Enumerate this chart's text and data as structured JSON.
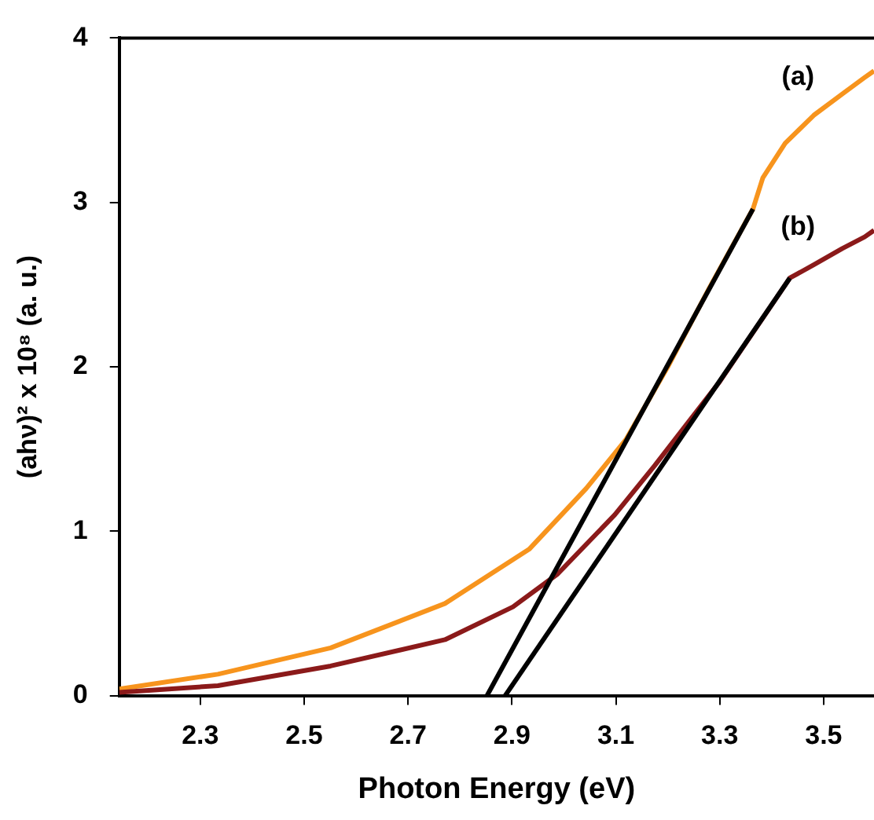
{
  "chart_data": {
    "type": "line",
    "xlabel": "Photon Energy (eV)",
    "ylabel": "(ahν)² x 10⁸ (a. u.)",
    "xlim": [
      2.144,
      3.597
    ],
    "xticks": [
      2.3,
      2.5,
      2.7,
      2.9,
      3.1,
      3.3,
      3.5
    ],
    "ylim": [
      0,
      4
    ],
    "yticks": [
      0,
      1,
      2,
      3,
      4
    ],
    "grid": false,
    "legend": false,
    "marker": "none",
    "line_style": "solid",
    "series": [
      {
        "name": "(a)",
        "color": "#f7941d",
        "x": [
          2.144,
          2.334,
          2.551,
          2.771,
          2.933,
          3.043,
          3.12,
          3.2,
          3.28,
          3.364,
          3.383,
          3.426,
          3.481,
          3.536,
          3.579,
          3.597
        ],
        "values": [
          0.04,
          0.13,
          0.29,
          0.56,
          0.89,
          1.26,
          1.56,
          2.0,
          2.48,
          2.96,
          3.15,
          3.36,
          3.53,
          3.66,
          3.76,
          3.8
        ]
      },
      {
        "name": "(b)",
        "color": "#8b1a1a",
        "x": [
          2.144,
          2.334,
          2.551,
          2.771,
          2.902,
          2.988,
          3.098,
          3.175,
          3.3,
          3.435,
          3.481,
          3.536,
          3.579,
          3.597
        ],
        "values": [
          0.02,
          0.06,
          0.18,
          0.34,
          0.54,
          0.74,
          1.1,
          1.4,
          1.91,
          2.54,
          2.62,
          2.72,
          2.79,
          2.83
        ]
      },
      {
        "color": "#000000",
        "x": [
          2.852,
          3.364
        ],
        "values": [
          0,
          2.96
        ]
      },
      {
        "color": "#000000",
        "x": [
          2.887,
          3.435
        ],
        "values": [
          0,
          2.54
        ]
      }
    ]
  }
}
